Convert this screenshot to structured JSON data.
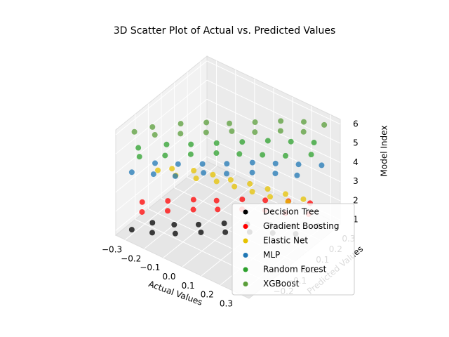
{
  "chart_data": {
    "type": "scatter3d",
    "title": "3D Scatter Plot of Actual vs. Predicted Values",
    "x_label": "Actual Values",
    "y_label": "Predicted Values",
    "z_label": "Model Index",
    "xlim": [
      -0.35,
      0.35
    ],
    "ylim": [
      -0.35,
      0.35
    ],
    "zlim": [
      0.75,
      6.25
    ],
    "xticks": [
      {
        "value": -0.3,
        "label": "−0.3"
      },
      {
        "value": -0.2,
        "label": "−0.2"
      },
      {
        "value": -0.1,
        "label": "−0.1"
      },
      {
        "value": 0,
        "label": "0.0"
      },
      0.1,
      0.2,
      0.3
    ],
    "yticks": [
      {
        "value": -0.2,
        "label": "−0.2"
      },
      {
        "value": -0.1,
        "label": "−0.1"
      },
      {
        "value": 0,
        "label": "0.0"
      },
      0.1,
      0.2,
      0.3
    ],
    "zticks": [
      1,
      2,
      3,
      4,
      5,
      6
    ],
    "grid": true,
    "legend": "lower right",
    "series": [
      {
        "name": "Decision Tree",
        "color": "#000000",
        "x": [
          -0.3,
          -0.26,
          -0.22,
          -0.18,
          -0.14,
          -0.1,
          -0.06,
          -0.02,
          0.02,
          0.06,
          0.1,
          0.14,
          0.18,
          0.22,
          0.26,
          0.3
        ],
        "y": [
          -0.3,
          -0.2,
          -0.26,
          -0.15,
          -0.2,
          -0.08,
          -0.12,
          0.0,
          -0.05,
          0.06,
          0.02,
          0.12,
          0.08,
          0.18,
          0.14,
          0.25
        ],
        "z": [
          1,
          1,
          1,
          1,
          1,
          1,
          1,
          1,
          1,
          1,
          1,
          1,
          1,
          1,
          1,
          1
        ]
      },
      {
        "name": "Gradient Boosting",
        "color": "#ff0000",
        "x": [
          -0.3,
          -0.26,
          -0.22,
          -0.18,
          -0.14,
          -0.1,
          -0.06,
          -0.02,
          0.02,
          0.06,
          0.1,
          0.14,
          0.18,
          0.22,
          0.26,
          0.3
        ],
        "y": [
          -0.22,
          -0.28,
          -0.14,
          -0.2,
          -0.06,
          -0.12,
          0.0,
          -0.05,
          0.08,
          0.02,
          0.14,
          0.08,
          0.2,
          0.12,
          0.25,
          0.18
        ],
        "z": [
          2,
          2,
          2,
          2,
          2,
          2,
          2,
          2,
          2,
          2,
          2,
          2,
          2,
          2,
          2,
          2
        ]
      },
      {
        "name": "Elastic Net",
        "color": "#e6c200",
        "x": [
          -0.3,
          -0.26,
          -0.22,
          -0.18,
          -0.14,
          -0.1,
          -0.06,
          -0.02,
          0.02,
          0.06,
          0.1,
          0.14,
          0.18,
          0.22,
          0.26,
          0.3
        ],
        "y": [
          -0.1,
          -0.05,
          -0.08,
          0.0,
          -0.04,
          0.03,
          0.0,
          0.05,
          0.02,
          0.08,
          0.04,
          0.1,
          0.06,
          0.12,
          0.08,
          0.14
        ],
        "z": [
          3,
          3,
          3,
          3,
          3,
          3,
          3,
          3,
          3,
          3,
          3,
          3,
          3,
          3,
          3,
          3
        ]
      },
      {
        "name": "MLP",
        "color": "#1f77b4",
        "x": [
          -0.3,
          -0.26,
          -0.22,
          -0.18,
          -0.14,
          -0.1,
          -0.06,
          -0.02,
          0.02,
          0.06,
          0.1,
          0.14,
          0.18,
          0.22,
          0.26,
          0.3
        ],
        "y": [
          -0.3,
          -0.18,
          -0.25,
          -0.12,
          -0.2,
          -0.05,
          -0.1,
          0.02,
          -0.04,
          0.1,
          0.04,
          0.16,
          0.1,
          0.22,
          0.15,
          0.28
        ],
        "z": [
          4,
          4,
          4,
          4,
          4,
          4,
          4,
          4,
          4,
          4,
          4,
          4,
          4,
          4,
          4,
          4
        ]
      },
      {
        "name": "Random Forest",
        "color": "#2ca02c",
        "x": [
          -0.3,
          -0.26,
          -0.22,
          -0.18,
          -0.14,
          -0.1,
          -0.06,
          -0.02,
          0.02,
          0.06,
          0.1,
          0.14,
          0.18,
          0.22,
          0.26,
          0.3
        ],
        "y": [
          -0.25,
          -0.3,
          -0.15,
          -0.22,
          -0.08,
          -0.14,
          0.0,
          -0.06,
          0.08,
          0.0,
          0.16,
          0.06,
          0.22,
          0.12,
          0.28,
          0.2
        ],
        "z": [
          5,
          5,
          5,
          5,
          5,
          5,
          5,
          5,
          5,
          5,
          5,
          5,
          5,
          5,
          5,
          5
        ]
      },
      {
        "name": "XGBoost",
        "color": "#5a9e3a",
        "x": [
          -0.3,
          -0.26,
          -0.22,
          -0.18,
          -0.14,
          -0.1,
          -0.06,
          -0.02,
          0.02,
          0.06,
          0.1,
          0.14,
          0.18,
          0.22,
          0.26,
          0.3
        ],
        "y": [
          -0.28,
          -0.2,
          -0.24,
          -0.1,
          -0.16,
          -0.02,
          -0.08,
          0.04,
          0.0,
          0.12,
          0.06,
          0.2,
          0.14,
          0.26,
          0.2,
          0.3
        ],
        "z": [
          6,
          6,
          6,
          6,
          6,
          6,
          6,
          6,
          6,
          6,
          6,
          6,
          6,
          6,
          6,
          6
        ]
      }
    ]
  }
}
